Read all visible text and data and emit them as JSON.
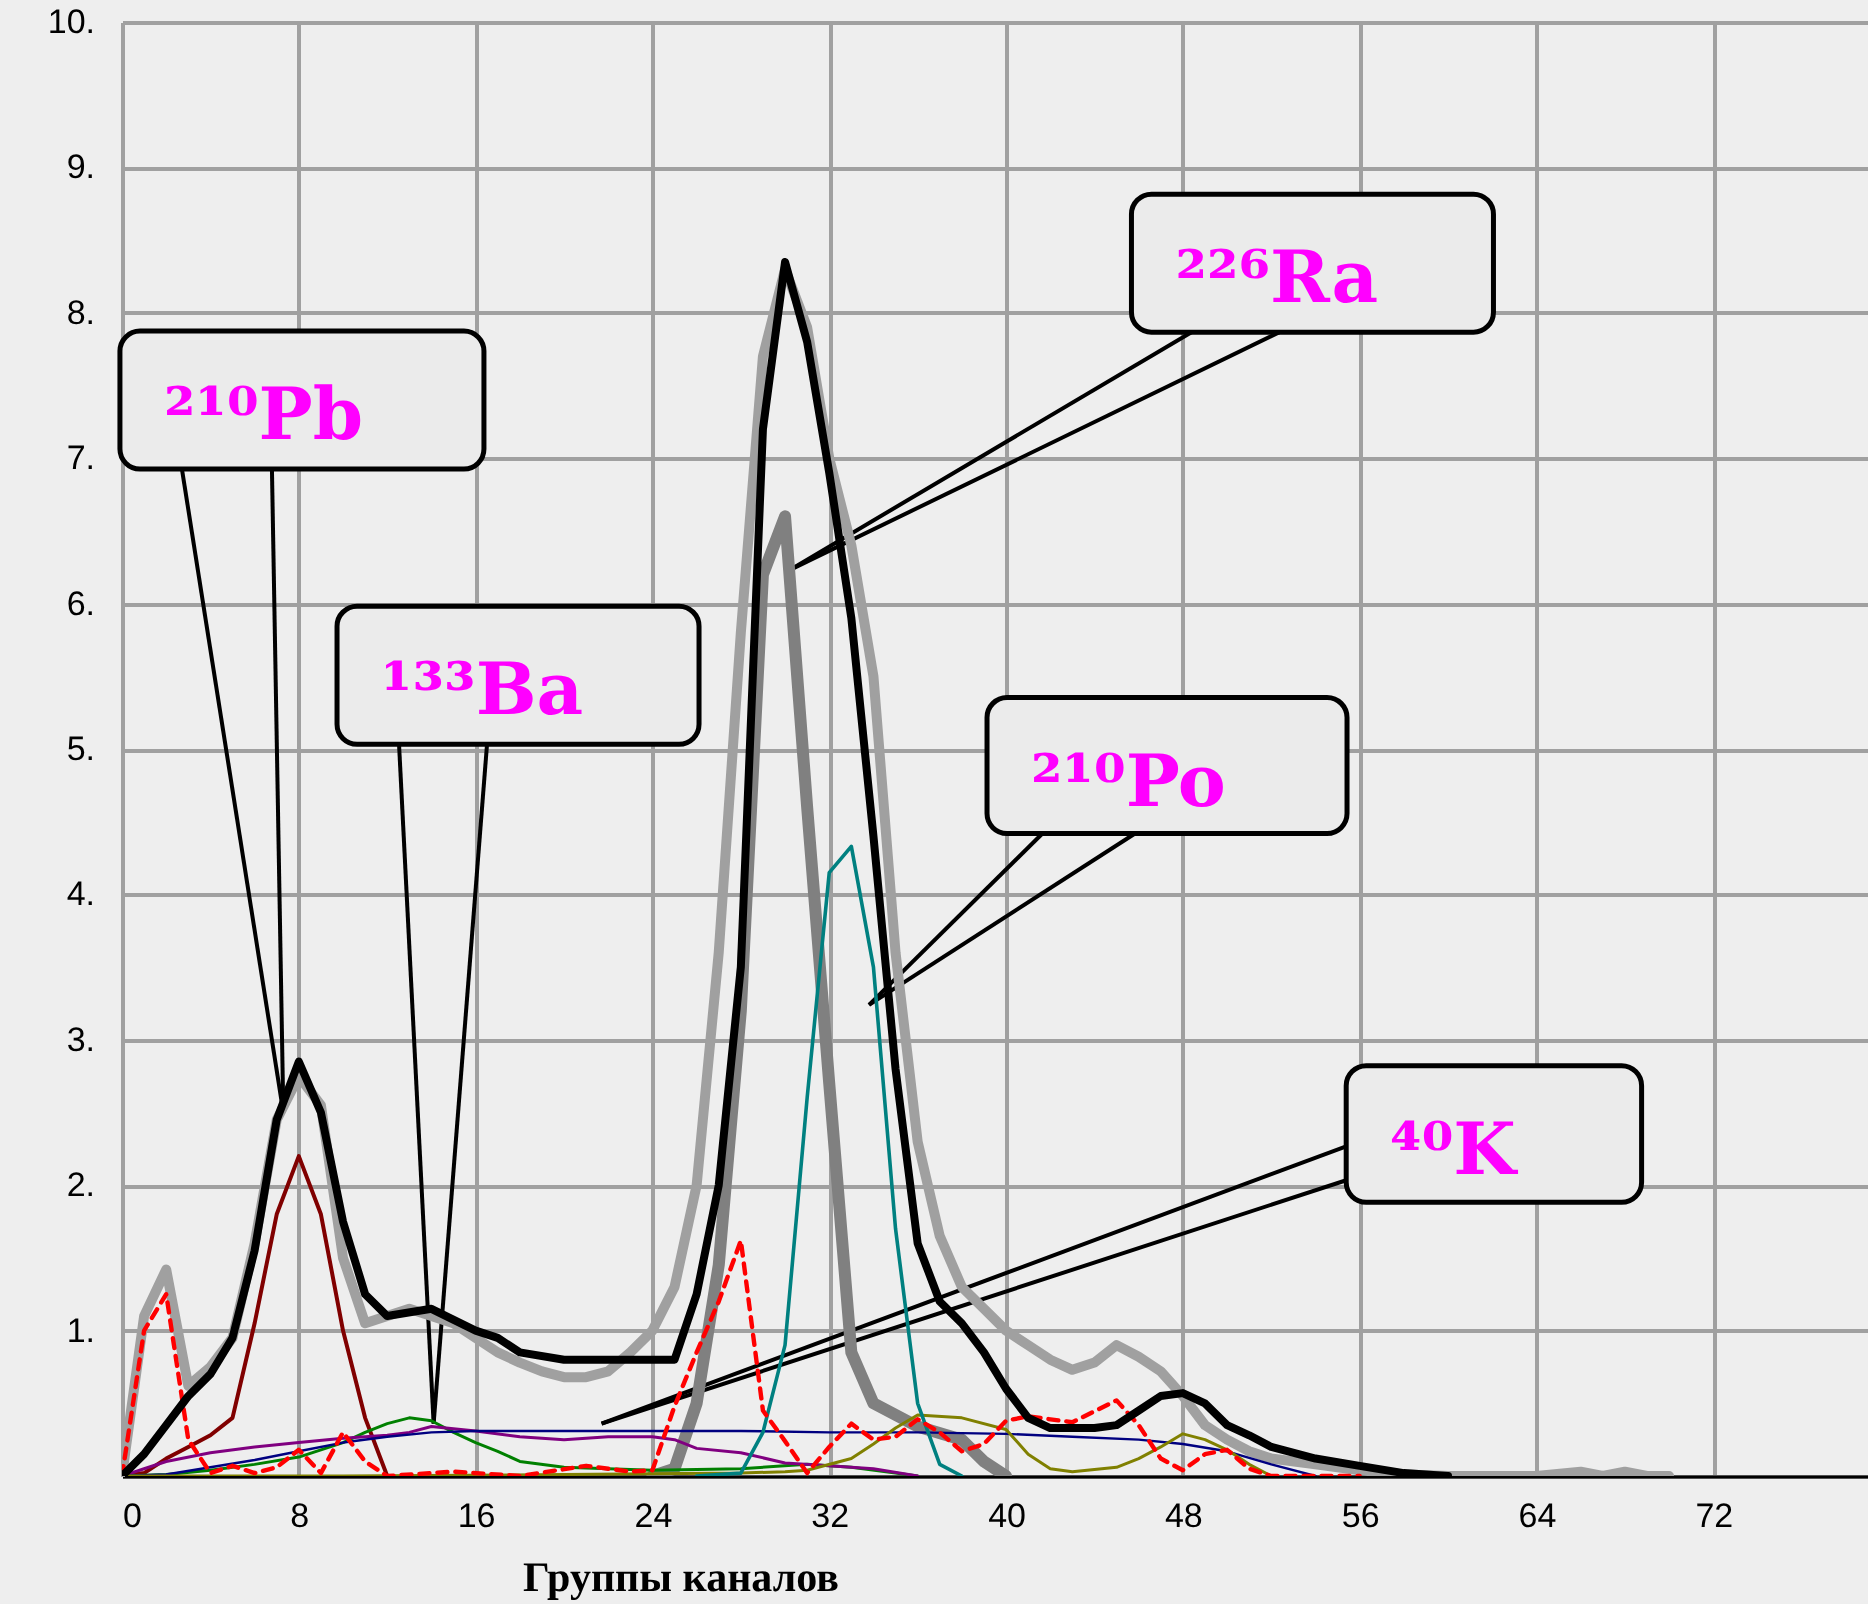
{
  "chart_data": {
    "type": "line",
    "xlabel": "Группы каналов",
    "xlim": [
      0,
      79
    ],
    "xticks": [
      0,
      8,
      16,
      24,
      32,
      40,
      48,
      56,
      64,
      72
    ],
    "ylim": [
      0,
      10
    ],
    "yticks": [
      {
        "value": 0,
        "label": null
      },
      {
        "value": 1,
        "label": "1."
      },
      {
        "value": 2,
        "label": "2."
      },
      {
        "value": 3,
        "label": "3."
      },
      {
        "value": 4,
        "label": "4."
      },
      {
        "value": 5,
        "label": "5."
      },
      {
        "value": 6,
        "label": "6."
      },
      {
        "value": 7,
        "label": "7."
      },
      {
        "value": 8,
        "label": "8."
      },
      {
        "value": 9,
        "label": "9."
      },
      {
        "value": 10,
        "label": "10."
      }
    ],
    "grid": true,
    "marker": "none",
    "line_style": "solid",
    "series": [
      {
        "color": "#a0a0a0",
        "x": [
          0,
          1,
          2,
          3,
          4,
          5,
          6,
          7,
          8,
          9,
          10,
          11,
          12,
          13,
          14,
          15,
          16,
          17,
          18,
          19,
          20,
          21,
          22,
          23,
          24,
          25,
          26,
          27,
          28,
          29,
          30,
          31,
          32,
          33,
          34,
          35,
          36,
          37,
          38,
          39,
          40,
          41,
          42,
          43,
          44,
          45,
          46,
          47,
          48,
          49,
          50,
          51,
          52,
          54,
          56,
          58,
          60,
          64,
          66,
          67,
          68,
          69,
          70
        ],
        "values": [
          0,
          1.1,
          1.42,
          0.62,
          0.75,
          0.95,
          1.6,
          2.45,
          2.75,
          2.55,
          1.5,
          1.05,
          1.1,
          1.15,
          1.1,
          1.05,
          0.95,
          0.85,
          0.78,
          0.72,
          0.68,
          0.68,
          0.72,
          0.85,
          1.0,
          1.3,
          2.0,
          3.6,
          5.8,
          7.7,
          8.3,
          7.9,
          7.0,
          6.4,
          5.5,
          3.6,
          2.3,
          1.65,
          1.3,
          1.15,
          1.0,
          0.9,
          0.8,
          0.73,
          0.78,
          0.9,
          0.82,
          0.72,
          0.55,
          0.35,
          0.25,
          0.17,
          0.12,
          0.08,
          0.04,
          0.01,
          0,
          0,
          0.03,
          0,
          0.03,
          0,
          0
        ]
      },
      {
        "color": "#808080",
        "x": [
          24,
          25,
          26,
          27,
          28,
          29,
          30,
          31,
          32,
          33,
          34,
          36,
          38,
          39,
          40
        ],
        "values": [
          0,
          0.05,
          0.5,
          1.45,
          3.2,
          6.2,
          6.6,
          4.6,
          2.7,
          0.85,
          0.5,
          0.34,
          0.25,
          0.1,
          0
        ]
      },
      {
        "color": "#800000",
        "x": [
          0,
          1,
          2,
          3,
          4,
          5,
          6,
          7,
          8,
          9,
          10,
          11,
          12
        ],
        "values": [
          0,
          0.02,
          0.12,
          0.2,
          0.28,
          0.4,
          1.05,
          1.8,
          2.2,
          1.8,
          1.0,
          0.4,
          0
        ]
      },
      {
        "color": "#008000",
        "x": [
          0,
          2,
          4,
          6,
          8,
          10,
          11,
          12,
          13,
          14,
          15,
          16,
          17,
          18,
          20,
          24,
          28,
          31,
          33,
          35,
          36
        ],
        "values": [
          0,
          0.01,
          0.04,
          0.08,
          0.13,
          0.23,
          0.3,
          0.36,
          0.4,
          0.38,
          0.3,
          0.23,
          0.17,
          0.1,
          0.06,
          0.04,
          0.05,
          0.08,
          0.06,
          0.02,
          0
        ]
      },
      {
        "color": "#800080",
        "x": [
          0,
          1,
          2,
          4,
          6,
          8,
          10,
          12,
          13,
          14,
          16,
          18,
          20,
          22,
          24,
          25,
          26,
          28,
          30,
          32,
          34,
          36
        ],
        "values": [
          0,
          0.05,
          0.1,
          0.16,
          0.2,
          0.23,
          0.26,
          0.28,
          0.3,
          0.34,
          0.31,
          0.27,
          0.25,
          0.27,
          0.27,
          0.25,
          0.19,
          0.16,
          0.09,
          0.07,
          0.05,
          0
        ]
      },
      {
        "color": "#000080",
        "x": [
          0,
          2,
          4,
          6,
          8,
          10,
          12,
          14,
          16,
          24,
          28,
          32,
          36,
          40,
          43,
          46,
          48,
          50,
          52,
          54
        ],
        "values": [
          0,
          0.01,
          0.06,
          0.11,
          0.17,
          0.23,
          0.27,
          0.3,
          0.31,
          0.31,
          0.31,
          0.3,
          0.3,
          0.29,
          0.27,
          0.25,
          0.22,
          0.17,
          0.08,
          0
        ]
      },
      {
        "color": "#808000",
        "x": [
          0,
          10,
          20,
          28,
          30,
          31,
          33,
          34,
          35,
          36,
          38,
          40,
          41,
          42,
          43,
          45,
          46,
          47,
          48,
          49,
          50,
          51,
          52
        ],
        "values": [
          0,
          0,
          0.01,
          0.02,
          0.03,
          0.04,
          0.12,
          0.22,
          0.33,
          0.42,
          0.4,
          0.32,
          0.15,
          0.05,
          0.03,
          0.06,
          0.12,
          0.2,
          0.29,
          0.25,
          0.18,
          0.08,
          0
        ]
      },
      {
        "color": "#008080",
        "x": [
          26,
          28,
          29,
          30,
          31,
          32,
          33,
          34,
          35,
          36,
          37,
          38
        ],
        "values": [
          0,
          0.02,
          0.3,
          0.9,
          2.6,
          4.15,
          4.33,
          3.5,
          1.7,
          0.5,
          0.08,
          0
        ]
      },
      {
        "color": "#ff0000",
        "line_style": "dashed",
        "x": [
          0,
          1,
          2,
          3,
          4,
          5,
          6,
          7,
          8,
          9,
          10,
          11,
          12,
          15,
          18,
          21,
          23,
          24,
          25,
          26,
          27,
          28,
          29,
          30,
          31,
          32,
          33,
          34,
          35,
          36,
          37,
          38,
          39,
          40,
          41,
          43,
          45,
          46,
          47,
          48,
          49,
          50,
          51,
          52,
          56
        ],
        "values": [
          0,
          1.0,
          1.25,
          0.25,
          0.02,
          0.07,
          0.02,
          0.06,
          0.18,
          0.02,
          0.3,
          0.1,
          0,
          0.03,
          0,
          0.07,
          0.03,
          0.04,
          0.48,
          0.85,
          1.2,
          1.62,
          0.45,
          0.24,
          0.02,
          0.2,
          0.36,
          0.25,
          0.27,
          0.39,
          0.3,
          0.17,
          0.22,
          0.38,
          0.41,
          0.37,
          0.52,
          0.35,
          0.12,
          0.04,
          0.15,
          0.18,
          0.05,
          0,
          0
        ]
      },
      {
        "color": "#000000",
        "x": [
          0,
          1,
          2,
          3,
          4,
          5,
          6,
          7,
          8,
          9,
          10,
          11,
          12,
          14,
          16,
          17,
          18,
          20,
          22,
          24,
          25,
          26,
          27,
          28,
          29,
          30,
          31,
          32,
          33,
          34,
          35,
          36,
          37,
          38,
          39,
          40,
          41,
          42,
          44,
          45,
          46,
          47,
          48,
          49,
          50,
          51,
          52,
          54,
          56,
          58,
          60
        ],
        "values": [
          0,
          0.15,
          0.35,
          0.55,
          0.7,
          0.95,
          1.55,
          2.45,
          2.85,
          2.5,
          1.75,
          1.25,
          1.1,
          1.15,
          1.0,
          0.95,
          0.85,
          0.8,
          0.8,
          0.8,
          0.8,
          1.25,
          2.0,
          3.5,
          7.2,
          8.35,
          7.8,
          6.9,
          5.9,
          4.4,
          2.8,
          1.6,
          1.2,
          1.05,
          0.85,
          0.6,
          0.4,
          0.33,
          0.33,
          0.35,
          0.45,
          0.55,
          0.57,
          0.5,
          0.35,
          0.28,
          0.2,
          0.12,
          0.07,
          0.02,
          0
        ]
      }
    ],
    "annotations": [
      {
        "text": "²¹⁰Pb",
        "x": 7.3,
        "y": 2.5
      },
      {
        "text": "¹³³Ba",
        "x": 14.1,
        "y": 0.36
      },
      {
        "text": "²²⁶Ra",
        "x": 30.2,
        "y": 6.23
      },
      {
        "text": "²¹⁰Po",
        "x": 33.8,
        "y": 3.24
      },
      {
        "text": "⁴⁰K",
        "x": 21.7,
        "y": 0.36
      }
    ]
  }
}
